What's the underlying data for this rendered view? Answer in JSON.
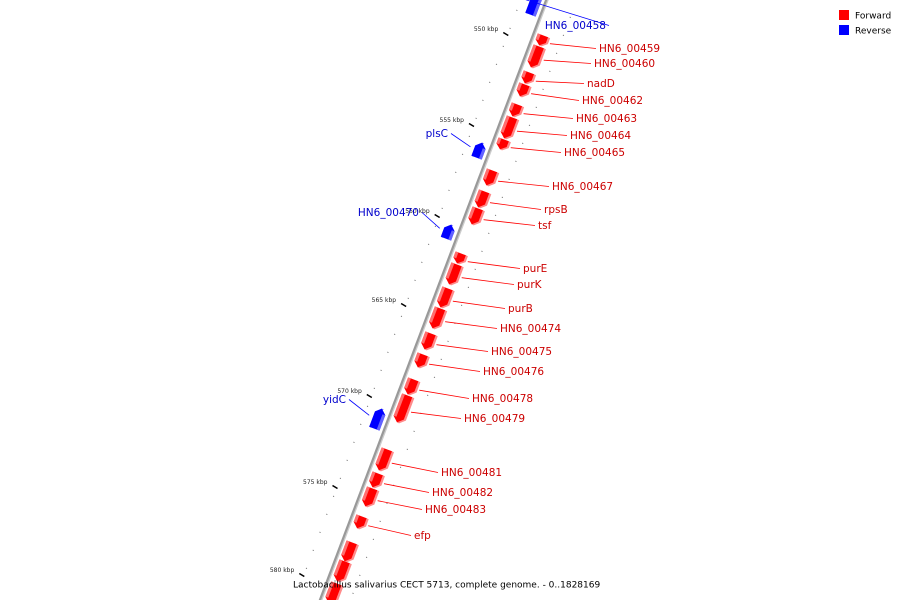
{
  "caption": "Lactobacillus salivarius CECT 5713, complete genome. - 0..1828169",
  "legend": [
    {
      "label": "Forward",
      "color": "#ff0000"
    },
    {
      "label": "Reverse",
      "color": "#0000ff"
    }
  ],
  "colors": {
    "forward": "#ff0000",
    "forward_light": "#ff8a8a",
    "reverse": "#0000ff",
    "reverse_light": "#7a7aff",
    "forward_text": "#cc0000",
    "reverse_text": "#0000cc",
    "backbone": "#999999"
  },
  "ticks": [
    {
      "label": "550 kbp"
    },
    {
      "label": "555 kbp"
    },
    {
      "label": "560 kbp"
    },
    {
      "label": "565 kbp"
    },
    {
      "label": "570 kbp"
    },
    {
      "label": "575 kbp"
    },
    {
      "label": "580 kbp"
    }
  ],
  "genes": [
    {
      "name": "HN6_00458",
      "strand": "reverse"
    },
    {
      "name": "HN6_00459",
      "strand": "forward"
    },
    {
      "name": "HN6_00460",
      "strand": "forward"
    },
    {
      "name": "nadD",
      "strand": "forward"
    },
    {
      "name": "HN6_00462",
      "strand": "forward"
    },
    {
      "name": "HN6_00463",
      "strand": "forward"
    },
    {
      "name": "HN6_00464",
      "strand": "forward"
    },
    {
      "name": "HN6_00465",
      "strand": "forward"
    },
    {
      "name": "plsC",
      "strand": "reverse"
    },
    {
      "name": "HN6_00467",
      "strand": "forward"
    },
    {
      "name": "rpsB",
      "strand": "forward"
    },
    {
      "name": "tsf",
      "strand": "forward"
    },
    {
      "name": "HN6_00470",
      "strand": "reverse"
    },
    {
      "name": "purE",
      "strand": "forward"
    },
    {
      "name": "purK",
      "strand": "forward"
    },
    {
      "name": "purB",
      "strand": "forward"
    },
    {
      "name": "HN6_00474",
      "strand": "forward"
    },
    {
      "name": "HN6_00475",
      "strand": "forward"
    },
    {
      "name": "HN6_00476",
      "strand": "forward"
    },
    {
      "name": "HN6_00478",
      "strand": "forward"
    },
    {
      "name": "yidC",
      "strand": "reverse"
    },
    {
      "name": "HN6_00479",
      "strand": "forward"
    },
    {
      "name": "HN6_00481",
      "strand": "forward"
    },
    {
      "name": "HN6_00482",
      "strand": "forward"
    },
    {
      "name": "HN6_00483",
      "strand": "forward"
    },
    {
      "name": "efp",
      "strand": "forward"
    }
  ]
}
